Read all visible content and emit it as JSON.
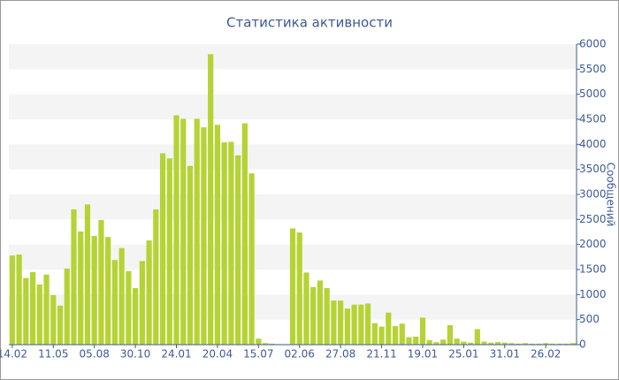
{
  "chart_data": {
    "type": "bar",
    "title": "Статистика активности",
    "y_label": "Сообщений",
    "color": "#b5d334",
    "categories": [
      "14.02",
      null,
      null,
      null,
      null,
      null,
      "11.05",
      null,
      null,
      null,
      null,
      null,
      "05.08",
      null,
      null,
      null,
      null,
      null,
      "30.10",
      null,
      null,
      null,
      null,
      null,
      "24.01",
      null,
      null,
      null,
      null,
      null,
      "20.04",
      null,
      null,
      null,
      null,
      null,
      "15.07",
      null,
      null,
      null,
      null,
      null,
      "02.06",
      null,
      null,
      null,
      null,
      null,
      "27.08",
      null,
      null,
      null,
      null,
      null,
      "21.11",
      null,
      null,
      null,
      null,
      null,
      "19.01",
      null,
      null,
      null,
      null,
      null,
      "25.01",
      null,
      null,
      null,
      null,
      null,
      "31.01",
      null,
      null,
      null,
      null,
      null,
      "26.02",
      null,
      null,
      null,
      null
    ],
    "values": [
      1780,
      1800,
      1330,
      1450,
      1200,
      1400,
      990,
      780,
      1520,
      2700,
      2260,
      2800,
      2170,
      2490,
      2150,
      1690,
      1930,
      1470,
      1130,
      1670,
      2080,
      2700,
      3820,
      3720,
      4580,
      4510,
      3570,
      4510,
      4340,
      5800,
      4390,
      4040,
      4050,
      3780,
      4420,
      3420,
      120,
      30,
      20,
      10,
      10,
      2320,
      2240,
      1440,
      1150,
      1280,
      1130,
      880,
      880,
      720,
      800,
      800,
      820,
      430,
      360,
      640,
      370,
      420,
      150,
      160,
      540,
      90,
      50,
      100,
      390,
      120,
      60,
      40,
      310,
      60,
      40,
      50,
      40,
      30,
      20,
      30,
      20,
      20,
      30,
      20,
      20,
      20,
      30
    ],
    "ylim": [
      0,
      6000
    ],
    "yticks": [
      0,
      500,
      1000,
      1500,
      2000,
      2500,
      3000,
      3500,
      4000,
      4500,
      5000,
      5500,
      6000
    ],
    "grid": true
  }
}
